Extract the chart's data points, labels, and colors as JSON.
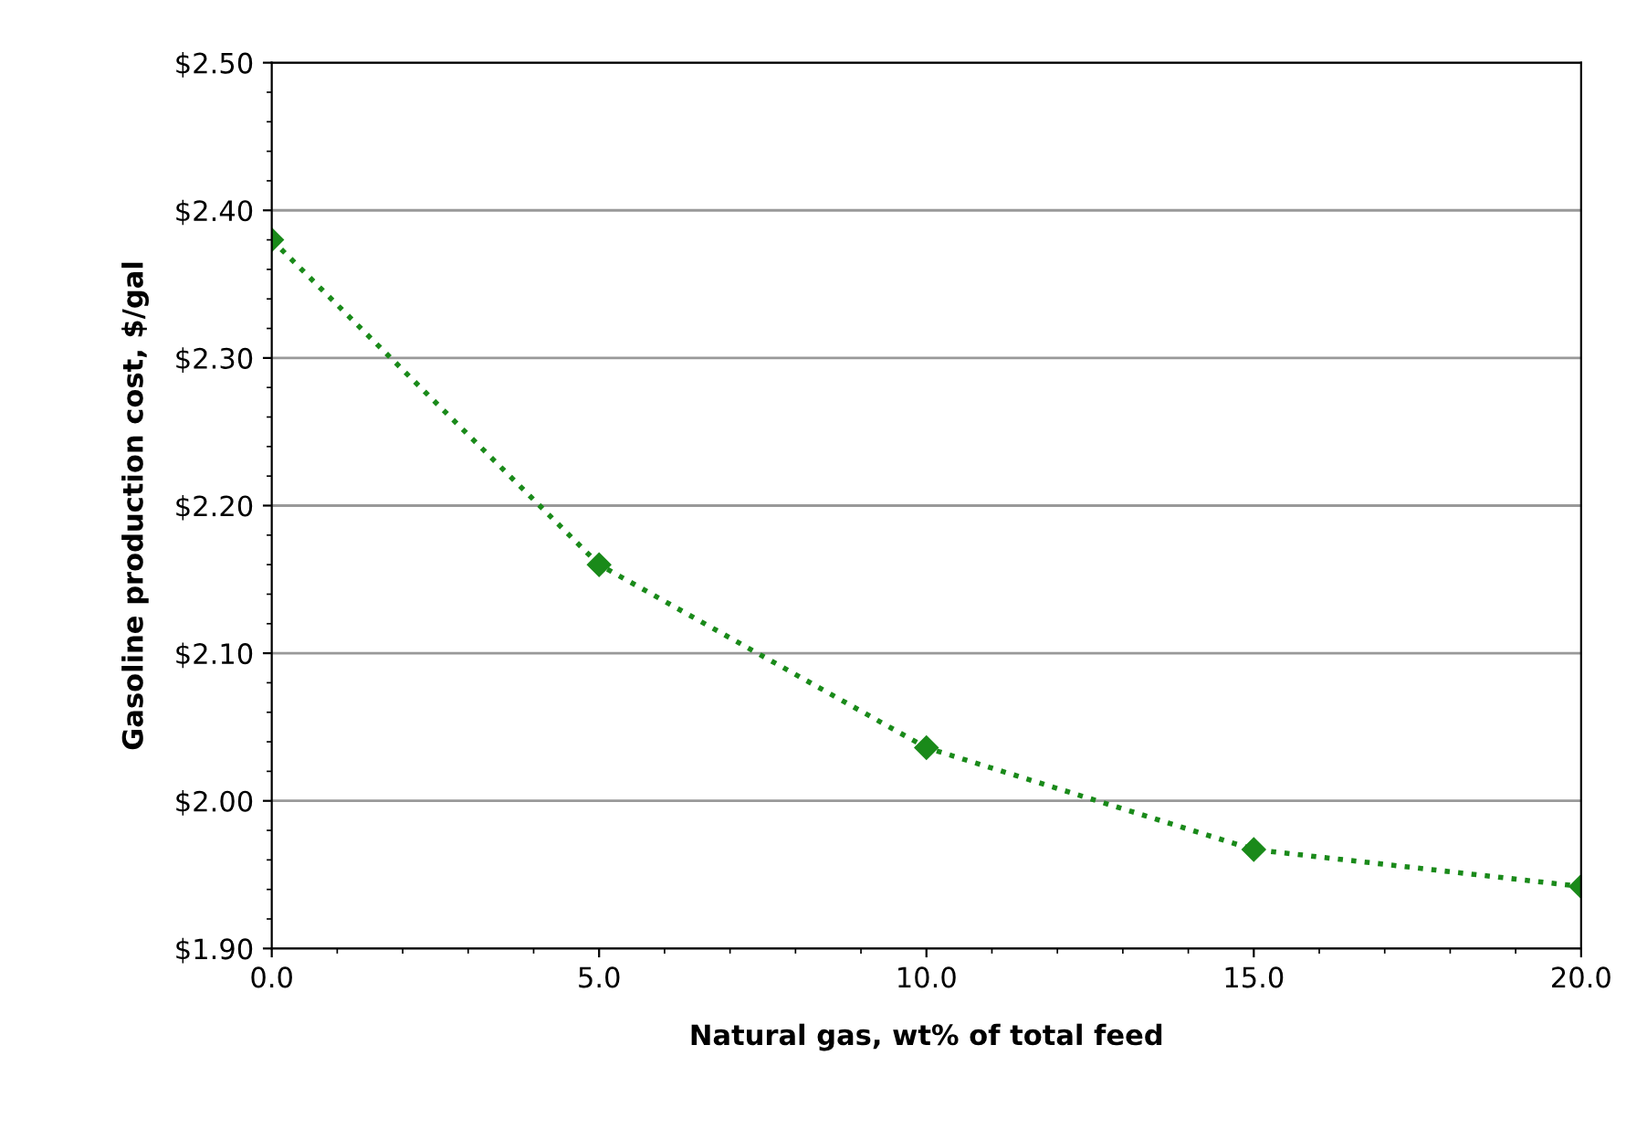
{
  "chart_data": {
    "type": "line",
    "xlabel": "Natural gas, wt% of total feed",
    "ylabel": "Gasoline production cost, $/gal",
    "x": [
      0,
      5,
      10,
      15,
      20
    ],
    "series": [
      {
        "color": "#1a8a1a",
        "values": [
          2.38,
          2.16,
          2.036,
          1.967,
          1.942
        ]
      }
    ],
    "marker": "diamond",
    "line_style": "dotted",
    "grid": "y",
    "xlim": [
      0,
      20
    ],
    "xticks": [
      {
        "value": 0,
        "label": "0.0"
      },
      {
        "value": 5,
        "label": "5.0"
      },
      {
        "value": 10,
        "label": "10.0"
      },
      {
        "value": 15,
        "label": "15.0"
      },
      {
        "value": 20,
        "label": "20.0"
      }
    ],
    "ylim": [
      1.9,
      2.5
    ],
    "yticks": [
      {
        "value": 1.9,
        "label": "$1.90"
      },
      {
        "value": 2.0,
        "label": "$2.00"
      },
      {
        "value": 2.1,
        "label": "$2.10"
      },
      {
        "value": 2.2,
        "label": "$2.20"
      },
      {
        "value": 2.3,
        "label": "$2.30"
      },
      {
        "value": 2.4,
        "label": "$2.40"
      },
      {
        "value": 2.5,
        "label": "$2.50"
      }
    ]
  }
}
